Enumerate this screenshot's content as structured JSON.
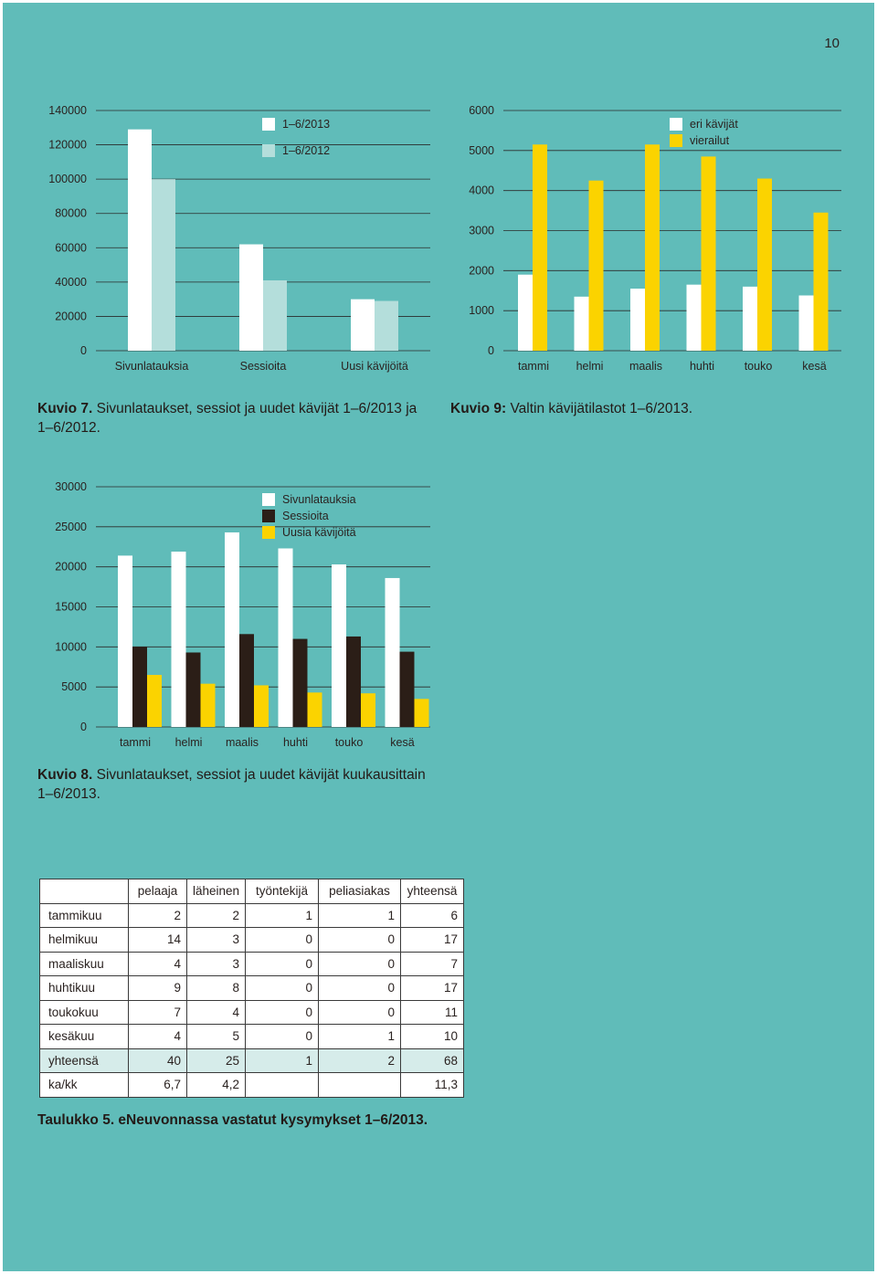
{
  "page_number": "10",
  "colors": {
    "background": "#60bcb9",
    "white": "#ffffff",
    "light_teal": "#b4dedb",
    "yellow": "#fbd300",
    "dark": "#2b1e17"
  },
  "chart7": {
    "caption_label": "Kuvio 7.",
    "caption_text": " Sivunlataukset, sessiot ja uudet kävijät 1–6/2013 ja 1–6/2012.",
    "legend": [
      "1–6/2013",
      "1–6/2012"
    ]
  },
  "chart9": {
    "caption_label": "Kuvio 9:",
    "caption_text": " Valtin kävijätilastot 1–6/2013.",
    "legend": [
      "eri kävijät",
      "vierailut"
    ]
  },
  "chart8": {
    "caption_label": "Kuvio 8.",
    "caption_text": " Sivunlataukset, sessiot ja uudet kävijät kuukausittain 1–6/2013.",
    "legend": [
      "Sivunlatauksia",
      "Sessioita",
      "Uusia kävijöitä"
    ]
  },
  "chart_data": [
    {
      "id": "chart7",
      "type": "bar",
      "categories": [
        "Sivunlatauksia",
        "Sessioita",
        "Uusi kävijöitä"
      ],
      "series": [
        {
          "name": "1–6/2013",
          "color": "#ffffff",
          "values": [
            129000,
            62000,
            30000
          ]
        },
        {
          "name": "1–6/2012",
          "color": "#b4dedb",
          "values": [
            100000,
            41000,
            29000
          ]
        }
      ],
      "yticks": [
        0,
        20000,
        40000,
        60000,
        80000,
        100000,
        120000,
        140000
      ],
      "ylim": [
        0,
        140000
      ],
      "grid": true,
      "legend_position": "top-right"
    },
    {
      "id": "chart9",
      "type": "bar",
      "categories": [
        "tammi",
        "helmi",
        "maalis",
        "huhti",
        "touko",
        "kesä"
      ],
      "series": [
        {
          "name": "eri kävijät",
          "color": "#ffffff",
          "values": [
            1900,
            1350,
            1550,
            1650,
            1600,
            1380
          ]
        },
        {
          "name": "vierailut",
          "color": "#fbd300",
          "values": [
            5150,
            4250,
            5150,
            4850,
            4300,
            3450
          ]
        }
      ],
      "yticks": [
        0,
        1000,
        2000,
        3000,
        4000,
        5000,
        6000
      ],
      "ylim": [
        0,
        6000
      ],
      "grid": true,
      "legend_position": "top-right"
    },
    {
      "id": "chart8",
      "type": "bar",
      "categories": [
        "tammi",
        "helmi",
        "maalis",
        "huhti",
        "touko",
        "kesä"
      ],
      "series": [
        {
          "name": "Sivunlatauksia",
          "color": "#ffffff",
          "values": [
            21400,
            21900,
            24300,
            22300,
            20300,
            18600
          ]
        },
        {
          "name": "Sessioita",
          "color": "#2b1e17",
          "values": [
            10000,
            9300,
            11600,
            11000,
            11300,
            9400
          ]
        },
        {
          "name": "Uusia kävijöitä",
          "color": "#fbd300",
          "values": [
            6500,
            5400,
            5200,
            4300,
            4200,
            3500
          ]
        }
      ],
      "yticks": [
        0,
        5000,
        10000,
        15000,
        20000,
        25000,
        30000
      ],
      "ylim": [
        0,
        30000
      ],
      "grid": true,
      "legend_position": "top-right"
    }
  ],
  "table5": {
    "caption": "Taulukko 5. eNeuvonnassa vastatut kysymykset 1–6/2013.",
    "headers": [
      "",
      "pelaaja",
      "läheinen",
      "työntekijä",
      "peliasiakas",
      "yhteensä"
    ],
    "rows": [
      [
        "tammikuu",
        "2",
        "2",
        "1",
        "1",
        "6"
      ],
      [
        "helmikuu",
        "14",
        "3",
        "0",
        "0",
        "17"
      ],
      [
        "maaliskuu",
        "4",
        "3",
        "0",
        "0",
        "7"
      ],
      [
        "huhtikuu",
        "9",
        "8",
        "0",
        "0",
        "17"
      ],
      [
        "toukokuu",
        "7",
        "4",
        "0",
        "0",
        "11"
      ],
      [
        "kesäkuu",
        "4",
        "5",
        "0",
        "1",
        "10"
      ],
      [
        "yhteensä",
        "40",
        "25",
        "1",
        "2",
        "68"
      ],
      [
        "ka/kk",
        "6,7",
        "4,2",
        "",
        "",
        "11,3"
      ]
    ]
  }
}
